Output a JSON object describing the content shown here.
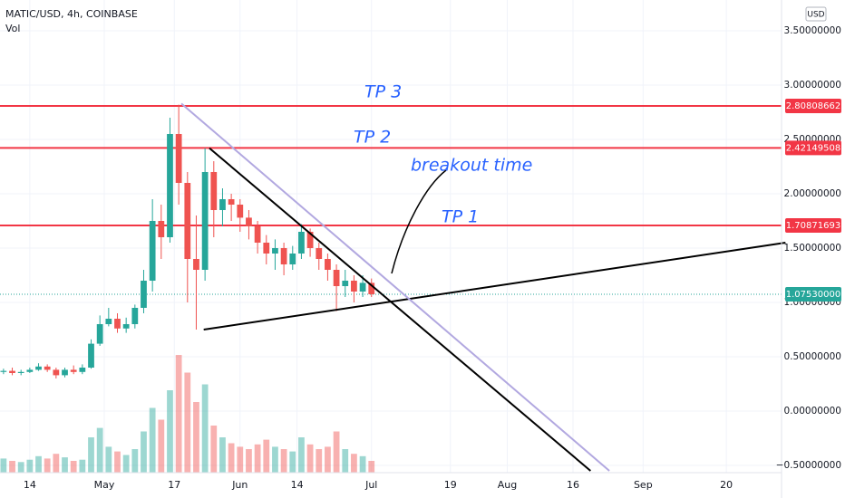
{
  "chart_data": {
    "type": "candlestick",
    "title": "MATIC/USD, 4h, COINBASE",
    "volume_label": "Vol",
    "currency": "USD",
    "x": [
      98,
      100,
      102,
      104,
      106,
      108,
      110,
      112,
      114,
      116,
      118,
      120,
      122,
      124,
      126,
      128,
      130,
      132,
      134,
      136,
      138,
      140,
      142,
      144,
      146,
      148,
      150,
      152,
      154,
      156,
      158,
      160,
      162,
      164,
      166,
      168,
      170,
      172,
      174,
      176,
      178,
      180,
      182
    ],
    "open": [
      0.36,
      0.37,
      0.35,
      0.36,
      0.38,
      0.41,
      0.38,
      0.33,
      0.38,
      0.36,
      0.4,
      0.62,
      0.8,
      0.85,
      0.76,
      0.8,
      0.95,
      1.2,
      1.75,
      1.6,
      2.55,
      2.1,
      1.4,
      1.3,
      2.2,
      1.85,
      1.95,
      1.9,
      1.78,
      1.7,
      1.55,
      1.45,
      1.5,
      1.35,
      1.45,
      1.65,
      1.5,
      1.4,
      1.3,
      1.15,
      1.2,
      1.1,
      1.18
    ],
    "high": [
      0.39,
      0.4,
      0.38,
      0.4,
      0.44,
      0.43,
      0.4,
      0.4,
      0.42,
      0.43,
      0.66,
      0.88,
      0.95,
      0.9,
      0.86,
      0.98,
      1.3,
      1.95,
      1.9,
      2.7,
      2.82,
      2.2,
      1.8,
      2.42,
      2.3,
      2.05,
      2.0,
      1.95,
      1.85,
      1.75,
      1.62,
      1.58,
      1.55,
      1.52,
      1.72,
      1.68,
      1.55,
      1.45,
      1.35,
      1.3,
      1.25,
      1.25,
      1.22
    ],
    "low": [
      0.34,
      0.33,
      0.33,
      0.35,
      0.37,
      0.36,
      0.3,
      0.31,
      0.34,
      0.34,
      0.39,
      0.6,
      0.78,
      0.72,
      0.72,
      0.76,
      0.9,
      1.1,
      1.4,
      1.55,
      1.9,
      1.0,
      0.75,
      1.2,
      1.6,
      1.7,
      1.75,
      1.65,
      1.58,
      1.45,
      1.35,
      1.3,
      1.25,
      1.3,
      1.4,
      1.42,
      1.3,
      1.2,
      0.92,
      1.05,
      1.0,
      1.05,
      1.05
    ],
    "close": [
      0.37,
      0.35,
      0.36,
      0.38,
      0.41,
      0.38,
      0.33,
      0.38,
      0.36,
      0.4,
      0.62,
      0.8,
      0.85,
      0.76,
      0.8,
      0.95,
      1.2,
      1.75,
      1.6,
      2.55,
      2.1,
      1.4,
      1.3,
      2.2,
      1.85,
      1.95,
      1.9,
      1.78,
      1.7,
      1.55,
      1.45,
      1.5,
      1.35,
      1.45,
      1.65,
      1.5,
      1.4,
      1.3,
      1.15,
      1.2,
      1.1,
      1.18,
      1.0753
    ],
    "volume": [
      12,
      10,
      9,
      11,
      14,
      12,
      16,
      13,
      10,
      11,
      30,
      38,
      22,
      18,
      15,
      20,
      35,
      55,
      45,
      70,
      100,
      85,
      60,
      75,
      40,
      30,
      25,
      22,
      20,
      24,
      28,
      22,
      20,
      18,
      30,
      24,
      20,
      22,
      35,
      20,
      16,
      14,
      10
    ],
    "volume_ylim": [
      0,
      100
    ],
    "up_color": "#26a69a",
    "down_color": "#ef5350",
    "xlim": [
      97.2,
      275.6
    ],
    "ylim": [
      -0.5667,
      3.7833
    ],
    "xticks": [
      {
        "value": 104,
        "label": "14"
      },
      {
        "value": 121,
        "label": "May"
      },
      {
        "value": 137,
        "label": "17"
      },
      {
        "value": 152,
        "label": "Jun"
      },
      {
        "value": 165,
        "label": "14"
      },
      {
        "value": 182,
        "label": "Jul"
      },
      {
        "value": 200,
        "label": "19"
      },
      {
        "value": 213,
        "label": "Aug"
      },
      {
        "value": 228,
        "label": "16"
      },
      {
        "value": 244,
        "label": "Sep"
      },
      {
        "value": 263,
        "label": "20"
      }
    ],
    "yticks": [
      {
        "value": 3.5,
        "label": "3.50000000"
      },
      {
        "value": 3,
        "label": "3.00000000"
      },
      {
        "value": 2.5,
        "label": "2.50000000"
      },
      {
        "value": 2,
        "label": "2.00000000"
      },
      {
        "value": 1.5,
        "label": "1.50000000"
      },
      {
        "value": 1,
        "label": "1.00000000"
      },
      {
        "value": 0.5,
        "label": "0.50000000"
      },
      {
        "value": 0,
        "label": "0.00000000"
      },
      {
        "value": -0.5,
        "label": "−0.50000000"
      }
    ],
    "grid": true,
    "levels": [
      {
        "value": 2.80808662,
        "color": "#f23645"
      },
      {
        "value": 2.42149508,
        "color": "#f23645"
      },
      {
        "value": 1.70871693,
        "color": "#f23645"
      }
    ],
    "last_price": {
      "value": 1.0753,
      "label": "1.07530000",
      "color": "#26a69a"
    },
    "trendlines": [
      {
        "color": "#000000",
        "x": [
          145,
          232
        ],
        "y": [
          2.42,
          -0.55
        ]
      },
      {
        "color": "#000000",
        "x": [
          143.7,
          276.5
        ],
        "y": [
          0.75,
          1.55
        ]
      },
      {
        "color": "#b2a8e0",
        "x": [
          138.6,
          236.3
        ],
        "y": [
          2.83,
          -0.55
        ]
      }
    ],
    "annotations": [
      "TP 3",
      "TP 2",
      "breakout time",
      "TP 1"
    ]
  }
}
